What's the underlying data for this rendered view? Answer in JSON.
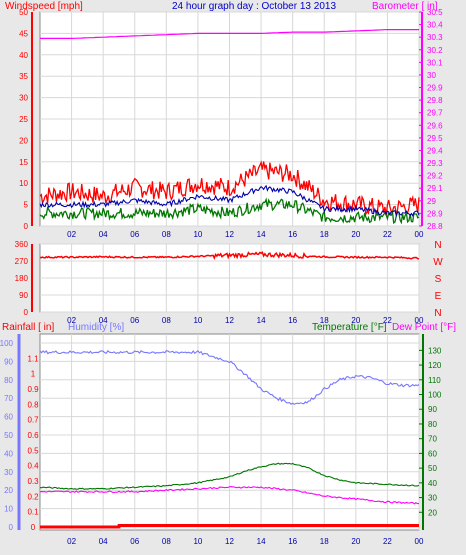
{
  "header": {
    "title": "24 hour graph day : October 13 2013",
    "left_label": "Windspeed [mph]",
    "right_label": "Barometer [ in]"
  },
  "colors": {
    "background": "#e8e8e8",
    "plot_bg": "#ffffff",
    "grid": "#d8d8d8",
    "wind": "#ff0000",
    "wind_avg": "#0000aa",
    "wind_low": "#007700",
    "barometer": "#ff00ff",
    "direction": "#ff0000",
    "humidity": "#7777ff",
    "temperature": "#007700",
    "dewpoint": "#ff00ff",
    "rain": "#ff0000",
    "title": "#0000cc"
  },
  "chart_data": [
    {
      "type": "line",
      "name": "wind-barometer",
      "title": "24 hour graph day : October 13 2013",
      "xticks": [
        "02",
        "04",
        "06",
        "08",
        "10",
        "12",
        "14",
        "16",
        "18",
        "20",
        "22",
        "00"
      ],
      "left_axis": {
        "label": "Windspeed [mph]",
        "ylim": [
          0,
          50
        ],
        "ticks": [
          "0",
          "5",
          "10",
          "15",
          "20",
          "25",
          "30",
          "35",
          "40",
          "45",
          "50"
        ]
      },
      "right_axis": {
        "label": "Barometer [ in]",
        "ylim": [
          28.8,
          30.5
        ],
        "ticks": [
          "28.8",
          "28.9",
          "29",
          "29.1",
          "29.2",
          "29.3",
          "29.4",
          "29.5",
          "29.6",
          "29.7",
          "29.8",
          "29.9",
          "30",
          "30.1",
          "30.2",
          "30.3",
          "30.4",
          "30.5"
        ]
      },
      "grid": true,
      "series": [
        {
          "name": "Barometer",
          "axis": "right",
          "x": [
            0,
            2,
            4,
            6,
            8,
            10,
            12,
            14,
            16,
            18,
            20,
            22,
            24
          ],
          "values": [
            30.29,
            30.29,
            30.3,
            30.31,
            30.32,
            30.33,
            30.33,
            30.33,
            30.34,
            30.34,
            30.35,
            30.36,
            30.36
          ]
        },
        {
          "name": "Gust",
          "axis": "left",
          "x": [
            0,
            2,
            4,
            6,
            8,
            10,
            12,
            14,
            16,
            18,
            20,
            22,
            24
          ],
          "values": [
            7,
            8,
            7,
            9,
            8,
            10,
            9,
            13,
            12,
            6,
            5,
            4,
            5
          ]
        },
        {
          "name": "Average",
          "axis": "left",
          "x": [
            0,
            2,
            4,
            6,
            8,
            10,
            12,
            14,
            16,
            18,
            20,
            22,
            24
          ],
          "values": [
            5,
            5,
            5,
            6,
            5,
            7,
            6,
            9,
            8,
            4,
            4,
            3,
            3
          ]
        },
        {
          "name": "Low",
          "axis": "left",
          "x": [
            0,
            2,
            4,
            6,
            8,
            10,
            12,
            14,
            16,
            18,
            20,
            22,
            24
          ],
          "values": [
            3,
            3,
            3,
            3,
            3,
            4,
            3,
            5,
            5,
            2,
            2,
            2,
            2
          ]
        }
      ]
    },
    {
      "type": "line",
      "name": "wind-direction",
      "xticks": [
        "02",
        "04",
        "06",
        "08",
        "10",
        "12",
        "14",
        "16",
        "18",
        "20",
        "22",
        "00"
      ],
      "left_axis": {
        "ylim": [
          0,
          360
        ],
        "ticks": [
          "0",
          "90",
          "180",
          "270",
          "360"
        ]
      },
      "right_labels": [
        "N",
        "W",
        "S",
        "E",
        "N"
      ],
      "grid": true,
      "series": [
        {
          "name": "Direction",
          "x": [
            0,
            2,
            4,
            6,
            8,
            10,
            12,
            14,
            16,
            18,
            20,
            22,
            24
          ],
          "values": [
            290,
            290,
            292,
            290,
            290,
            295,
            300,
            305,
            300,
            292,
            290,
            290,
            285
          ]
        }
      ]
    },
    {
      "type": "line",
      "name": "rain-humidity-temperature",
      "xticks": [
        "02",
        "04",
        "06",
        "08",
        "10",
        "12",
        "14",
        "16",
        "18",
        "20",
        "22",
        "00"
      ],
      "labels": {
        "rainfall": "Rainfall [ in]",
        "humidity": "Humidity [%]",
        "temperature": "Temperature [°F]",
        "dewpoint": "Dew Point [°F]"
      },
      "humidity_axis": {
        "ylim": [
          0,
          100
        ],
        "ticks": [
          "0",
          "10",
          "20",
          "30",
          "40",
          "50",
          "60",
          "70",
          "80",
          "90",
          "100"
        ]
      },
      "rain_axis": {
        "ylim": [
          0,
          1.2
        ],
        "ticks": [
          "0",
          "0.1",
          "0.2",
          "0.3",
          "0.4",
          "0.5",
          "0.6",
          "0.7",
          "0.8",
          "0.9",
          "1",
          "1.1"
        ]
      },
      "temp_axis": {
        "ylim": [
          10,
          135
        ],
        "ticks": [
          "20",
          "30",
          "40",
          "50",
          "60",
          "70",
          "80",
          "90",
          "100",
          "110",
          "120",
          "130"
        ]
      },
      "grid": true,
      "series": [
        {
          "name": "Humidity",
          "axis": "humidity",
          "x": [
            0,
            2,
            4,
            6,
            8,
            10,
            12,
            13,
            14,
            15,
            16,
            17,
            18,
            19,
            20,
            21,
            22,
            23,
            24
          ],
          "values": [
            95,
            95,
            95,
            95,
            95,
            95,
            90,
            83,
            75,
            70,
            67,
            68,
            75,
            80,
            82,
            81,
            78,
            77,
            77
          ]
        },
        {
          "name": "Temperature",
          "axis": "temp",
          "x": [
            0,
            2,
            4,
            6,
            8,
            10,
            12,
            13,
            14,
            15,
            16,
            17,
            18,
            19,
            20,
            22,
            24
          ],
          "values": [
            37,
            36,
            36,
            37,
            38,
            40,
            44,
            48,
            51,
            53,
            53,
            50,
            45,
            42,
            40,
            39,
            38
          ]
        },
        {
          "name": "Dew Point",
          "axis": "temp",
          "x": [
            0,
            2,
            4,
            6,
            8,
            10,
            12,
            14,
            16,
            18,
            20,
            22,
            24
          ],
          "values": [
            34,
            34,
            34,
            34,
            35,
            36,
            37,
            37,
            35,
            31,
            29,
            27,
            26
          ]
        },
        {
          "name": "Rainfall",
          "axis": "rain",
          "x": [
            0,
            5,
            5.01,
            24
          ],
          "values": [
            0,
            0,
            0.01,
            0.01
          ]
        }
      ]
    }
  ]
}
